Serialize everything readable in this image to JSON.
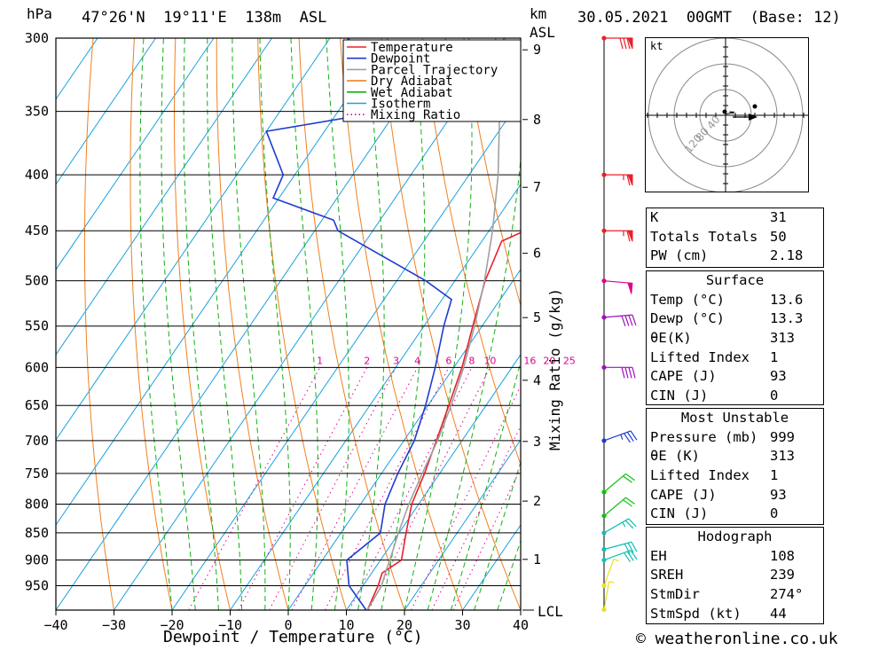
{
  "header": {
    "pressure_unit": "hPa",
    "location": "47°26'N  19°11'E  138m  ASL",
    "height_unit": "km",
    "height_ref": "ASL",
    "datetime": "30.05.2021  00GMT  (Base: 12)"
  },
  "axes": {
    "xlabel": "Dewpoint / Temperature (°C)",
    "mixing_ratio_label": "Mixing Ratio (g/kg)",
    "lcl_label": "LCL",
    "footer": "© weatheronline.co.uk"
  },
  "legend": [
    {
      "name": "Temperature",
      "color": "#e8202a",
      "style": "solid"
    },
    {
      "name": "Dewpoint",
      "color": "#1e3ccf",
      "style": "solid"
    },
    {
      "name": "Parcel Trajectory",
      "color": "#a0a0a0",
      "style": "solid"
    },
    {
      "name": "Dry Adiabat",
      "color": "#f08020",
      "style": "solid"
    },
    {
      "name": "Wet Adiabat",
      "color": "#10b010",
      "style": "solid"
    },
    {
      "name": "Isotherm",
      "color": "#1aa0e0",
      "style": "solid"
    },
    {
      "name": "Mixing Ratio",
      "color": "#e0008c",
      "style": "dotted"
    }
  ],
  "chart_data": {
    "type": "line",
    "title": "",
    "xlabel": "Dewpoint / Temperature (°C)",
    "ylabel": "hPa",
    "xlim": [
      -40,
      40
    ],
    "x_ticks": [
      "−40",
      "−30",
      "−20",
      "−10",
      "0",
      "10",
      "20",
      "30",
      "40"
    ],
    "y_ticks": [
      "300",
      "350",
      "400",
      "450",
      "500",
      "550",
      "600",
      "650",
      "700",
      "750",
      "800",
      "850",
      "900",
      "950"
    ],
    "y_scale": "log",
    "pressure_range": [
      1000,
      300
    ],
    "km_ticks": [
      "1",
      "2",
      "3",
      "4",
      "5",
      "6",
      "7",
      "8",
      "9"
    ],
    "mixing_ratio_labels": [
      "1",
      "2",
      "3",
      "4",
      "6",
      "8",
      "10",
      "16",
      "20",
      "25"
    ],
    "series": [
      {
        "name": "Temperature",
        "color": "#e8202a",
        "p": [
          999,
          950,
          925,
          900,
          850,
          800,
          750,
          700,
          650,
          600,
          550,
          500,
          460,
          450,
          400,
          350,
          320,
          300
        ],
        "values": [
          13.6,
          12.6,
          11.8,
          13.6,
          11.2,
          8.8,
          7.4,
          5.6,
          3.6,
          1.4,
          -1.6,
          -4.8,
          -6.6,
          -3.8,
          -10.6,
          -18.5,
          -23.5,
          -26
        ]
      },
      {
        "name": "Dewpoint",
        "color": "#1e3ccf",
        "p": [
          999,
          950,
          900,
          850,
          800,
          750,
          700,
          650,
          600,
          550,
          520,
          500,
          450,
          440,
          420,
          400,
          365,
          350,
          330,
          320,
          310,
          300
        ],
        "values": [
          13.3,
          7.6,
          4.2,
          6.8,
          4.2,
          2.8,
          1.8,
          -0.4,
          -3.2,
          -6.6,
          -8.4,
          -15,
          -36,
          -38,
          -51,
          -52,
          -60,
          -42,
          -46,
          -54,
          -52,
          -57
        ]
      },
      {
        "name": "Parcel Trajectory",
        "color": "#a0a0a0",
        "p": [
          999,
          950,
          920,
          900,
          850,
          800,
          750,
          700,
          650,
          600,
          550,
          500,
          450,
          400,
          350,
          300
        ],
        "values": [
          13.6,
          13.2,
          12.2,
          11.6,
          9.9,
          8.3,
          7.0,
          5.8,
          4.0,
          1.7,
          -1.3,
          -4.9,
          -9.4,
          -15.0,
          -22.2,
          -31.5
        ]
      }
    ],
    "wind": [
      {
        "p": 999,
        "dir": 190,
        "kt": 5,
        "color": "#e8e020"
      },
      {
        "p": 950,
        "dir": 200,
        "kt": 5,
        "color": "#e8e020"
      },
      {
        "p": 900,
        "dir": 250,
        "kt": 30,
        "color": "#10c0b0"
      },
      {
        "p": 880,
        "dir": 255,
        "kt": 30,
        "color": "#10c0b0"
      },
      {
        "p": 850,
        "dir": 240,
        "kt": 25,
        "color": "#10c0b0"
      },
      {
        "p": 820,
        "dir": 230,
        "kt": 20,
        "color": "#10c010"
      },
      {
        "p": 780,
        "dir": 230,
        "kt": 20,
        "color": "#10c010"
      },
      {
        "p": 700,
        "dir": 250,
        "kt": 35,
        "color": "#1e3ccf"
      },
      {
        "p": 600,
        "dir": 270,
        "kt": 40,
        "color": "#a010c0"
      },
      {
        "p": 540,
        "dir": 265,
        "kt": 40,
        "color": "#a010c0"
      },
      {
        "p": 500,
        "dir": 275,
        "kt": 50,
        "color": "#e0008c"
      },
      {
        "p": 450,
        "dir": 270,
        "kt": 65,
        "color": "#e8202a"
      },
      {
        "p": 400,
        "dir": 270,
        "kt": 65,
        "color": "#e8202a"
      },
      {
        "p": 300,
        "dir": 270,
        "kt": 80,
        "color": "#e8202a"
      }
    ],
    "hodograph": {
      "unit_label": "kt",
      "ring_labels": [
        "40",
        "80",
        "120"
      ]
    }
  },
  "indices": {
    "general": [
      {
        "label": "K",
        "value": "31"
      },
      {
        "label": "Totals Totals",
        "value": "50"
      },
      {
        "label": "PW (cm)",
        "value": "2.18"
      }
    ],
    "surface_title": "Surface",
    "surface": [
      {
        "label": "Temp (°C)",
        "value": "13.6"
      },
      {
        "label": "Dewp (°C)",
        "value": "13.3"
      },
      {
        "label": "θE(K)",
        "value": "313"
      },
      {
        "label": "Lifted Index",
        "value": "1"
      },
      {
        "label": "CAPE (J)",
        "value": "93"
      },
      {
        "label": "CIN (J)",
        "value": "0"
      }
    ],
    "unstable_title": "Most Unstable",
    "unstable": [
      {
        "label": "Pressure (mb)",
        "value": "999"
      },
      {
        "label": "θE (K)",
        "value": "313"
      },
      {
        "label": "Lifted Index",
        "value": "1"
      },
      {
        "label": "CAPE (J)",
        "value": "93"
      },
      {
        "label": "CIN (J)",
        "value": "0"
      }
    ],
    "hodograph_title": "Hodograph",
    "hodograph": [
      {
        "label": "EH",
        "value": "108"
      },
      {
        "label": "SREH",
        "value": "239"
      },
      {
        "label": "StmDir",
        "value": "274°"
      },
      {
        "label": "StmSpd (kt)",
        "value": "44"
      }
    ]
  }
}
